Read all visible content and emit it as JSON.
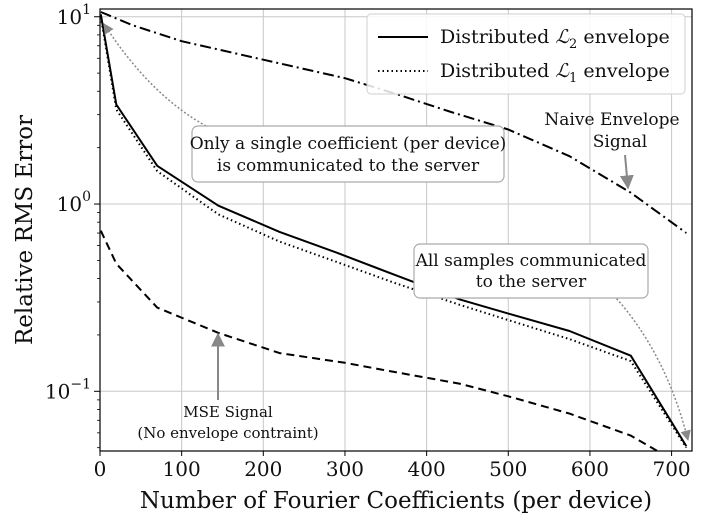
{
  "chart_data": {
    "type": "line",
    "xlabel": "Number of Fourier Coefficients (per device)",
    "ylabel": "Relative RMS Error",
    "yscale": "log",
    "xlim": [
      0,
      725
    ],
    "ylim": [
      0.048,
      11
    ],
    "grid": true,
    "legend": "top-right",
    "x_ticks": [
      0,
      100,
      200,
      300,
      400,
      500,
      600,
      700
    ],
    "x_tick_labels": [
      "0",
      "100",
      "200",
      "300",
      "400",
      "500",
      "600",
      "700"
    ],
    "y_ticks": [
      0.1,
      1,
      10
    ],
    "y_tick_labels": [
      {
        "base": "10",
        "exp": "−1"
      },
      {
        "base": "10",
        "exp": "0"
      },
      {
        "base": "10",
        "exp": "1"
      }
    ],
    "series": [
      {
        "name_prefix": "Distributed ",
        "name_symbol": "ℒ",
        "name_sub": "2",
        "name_suffix": " envelope",
        "style": "solid",
        "x": [
          1,
          20,
          70,
          145,
          220,
          290,
          360,
          440,
          500,
          575,
          650,
          718
        ],
        "y": [
          10.3,
          3.4,
          1.6,
          0.98,
          0.71,
          0.55,
          0.42,
          0.31,
          0.26,
          0.21,
          0.155,
          0.051
        ]
      },
      {
        "name_prefix": "Distributed ",
        "name_symbol": "ℒ",
        "name_sub": "1",
        "name_suffix": " envelope",
        "style": "dotted",
        "x": [
          1,
          20,
          70,
          145,
          220,
          290,
          360,
          440,
          500,
          575,
          650,
          718
        ],
        "y": [
          10.0,
          3.2,
          1.5,
          0.88,
          0.63,
          0.49,
          0.38,
          0.29,
          0.24,
          0.19,
          0.145,
          0.05
        ]
      },
      {
        "name": "",
        "style": "dashdot",
        "x": [
          1,
          40,
          100,
          200,
          300,
          360,
          430,
          500,
          575,
          650,
          718
        ],
        "y": [
          10.6,
          9.0,
          7.4,
          5.9,
          4.7,
          3.9,
          3.1,
          2.5,
          1.8,
          1.15,
          0.7
        ]
      },
      {
        "name": "",
        "style": "dashed",
        "x": [
          1,
          20,
          70,
          145,
          220,
          300,
          360,
          440,
          500,
          575,
          650,
          690
        ],
        "y": [
          0.72,
          0.48,
          0.28,
          0.205,
          0.16,
          0.142,
          0.127,
          0.11,
          0.094,
          0.076,
          0.058,
          0.046
        ]
      }
    ],
    "annotations": [
      {
        "lines": [
          "Only a single coefficient (per device)",
          "is communicated to the server"
        ],
        "boxed": true,
        "arrow": "dotted"
      },
      {
        "lines": [
          "All samples communicated",
          "to the server"
        ],
        "boxed": true,
        "arrow": "dotted"
      },
      {
        "lines": [
          "Naive Envelope",
          "Signal"
        ],
        "boxed": false,
        "arrow": "solid"
      },
      {
        "lines": [
          "MSE Signal",
          "(No envelope contraint)"
        ],
        "boxed": false,
        "arrow": "solid"
      }
    ]
  }
}
